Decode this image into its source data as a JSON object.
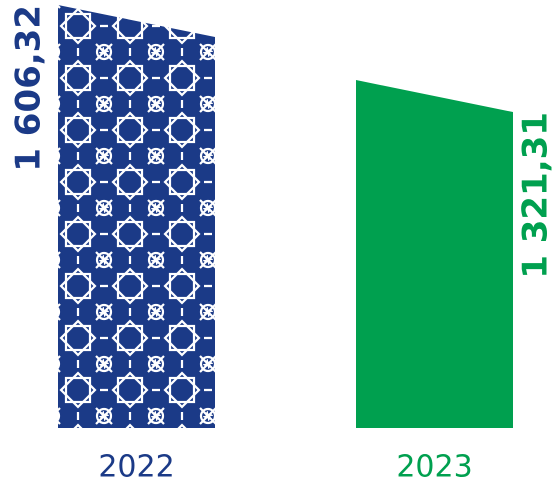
{
  "chart_data": {
    "type": "bar",
    "categories": [
      "2022",
      "2023"
    ],
    "values": [
      1606.32,
      1321.31
    ],
    "value_labels": [
      "1 606,32",
      "1 321,31"
    ],
    "colors": [
      "#1b3a87",
      "#00a04f"
    ]
  }
}
